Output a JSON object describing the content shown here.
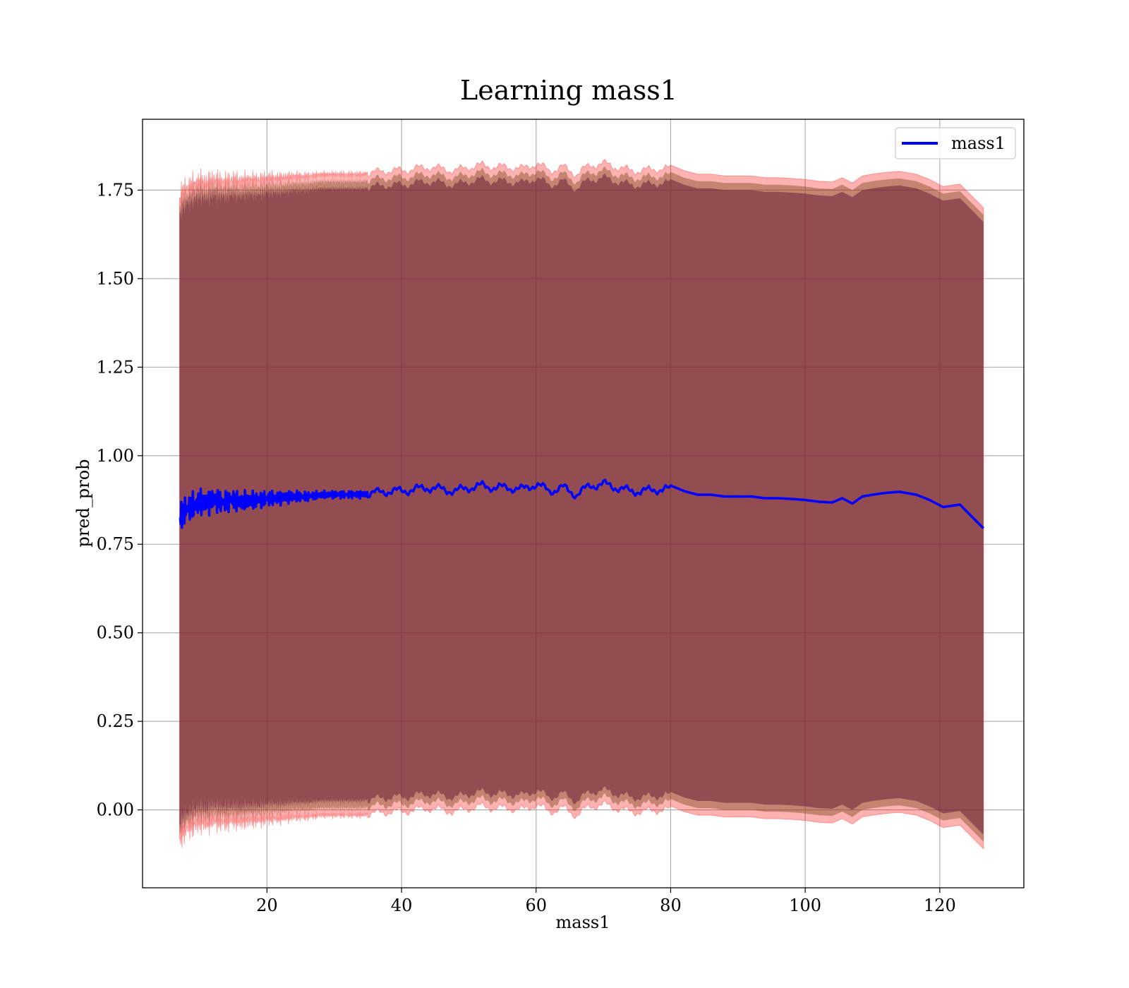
{
  "chart_data": {
    "type": "line",
    "title": "Learning mass1",
    "xlabel": "mass1",
    "ylabel": "pred_prob",
    "xlim": [
      1.5,
      132.5
    ],
    "ylim": [
      -0.22,
      1.95
    ],
    "x_ticks": [
      20,
      40,
      60,
      80,
      100,
      120
    ],
    "x_tick_labels": [
      "20",
      "40",
      "60",
      "80",
      "100",
      "120"
    ],
    "y_ticks": [
      0.0,
      0.25,
      0.5,
      0.75,
      1.0,
      1.25,
      1.5,
      1.75
    ],
    "y_tick_labels": [
      "0.00",
      "0.25",
      "0.50",
      "0.75",
      "1.00",
      "1.25",
      "1.50",
      "1.75"
    ],
    "grid": true,
    "legend_position": "top-right",
    "series": [
      {
        "name": "mass1",
        "color": "#0000ff",
        "x": [
          7.0,
          7.5,
          8.0,
          9.0,
          10.0,
          11.0,
          12.0,
          13.0,
          14.0,
          15.0,
          16.0,
          17.0,
          18.0,
          19.0,
          20.0,
          22.0,
          24.0,
          26.0,
          28.0,
          30.0,
          32.0,
          34.0,
          36.0,
          38.0,
          40.0,
          42.0,
          44.0,
          46.0,
          48.0,
          50.0,
          52.0,
          54.0,
          56.0,
          58.0,
          60.0,
          62.0,
          64.0,
          66.0,
          68.0,
          70.0,
          72.0,
          74.0,
          76.0,
          78.0,
          80.0,
          82.0,
          84.0,
          86.0,
          88.0,
          90.0,
          92.0,
          94.0,
          96.0,
          98.0,
          100.0,
          102.0,
          104.0,
          105.5,
          107.0,
          108.5,
          110.0,
          112.0,
          114.0,
          116.5,
          118.5,
          120.5,
          123.0,
          126.5
        ],
        "values": [
          0.82,
          0.84,
          0.85,
          0.86,
          0.87,
          0.865,
          0.875,
          0.87,
          0.87,
          0.875,
          0.87,
          0.875,
          0.875,
          0.875,
          0.88,
          0.88,
          0.885,
          0.885,
          0.89,
          0.89,
          0.89,
          0.89,
          0.895,
          0.9,
          0.9,
          0.905,
          0.91,
          0.905,
          0.9,
          0.91,
          0.915,
          0.91,
          0.91,
          0.905,
          0.92,
          0.9,
          0.91,
          0.89,
          0.915,
          0.92,
          0.91,
          0.9,
          0.9,
          0.905,
          0.905,
          0.9,
          0.89,
          0.89,
          0.885,
          0.885,
          0.885,
          0.88,
          0.88,
          0.878,
          0.875,
          0.87,
          0.868,
          0.88,
          0.865,
          0.885,
          0.89,
          0.895,
          0.898,
          0.89,
          0.875,
          0.855,
          0.862,
          0.795
        ]
      }
    ]
  }
}
